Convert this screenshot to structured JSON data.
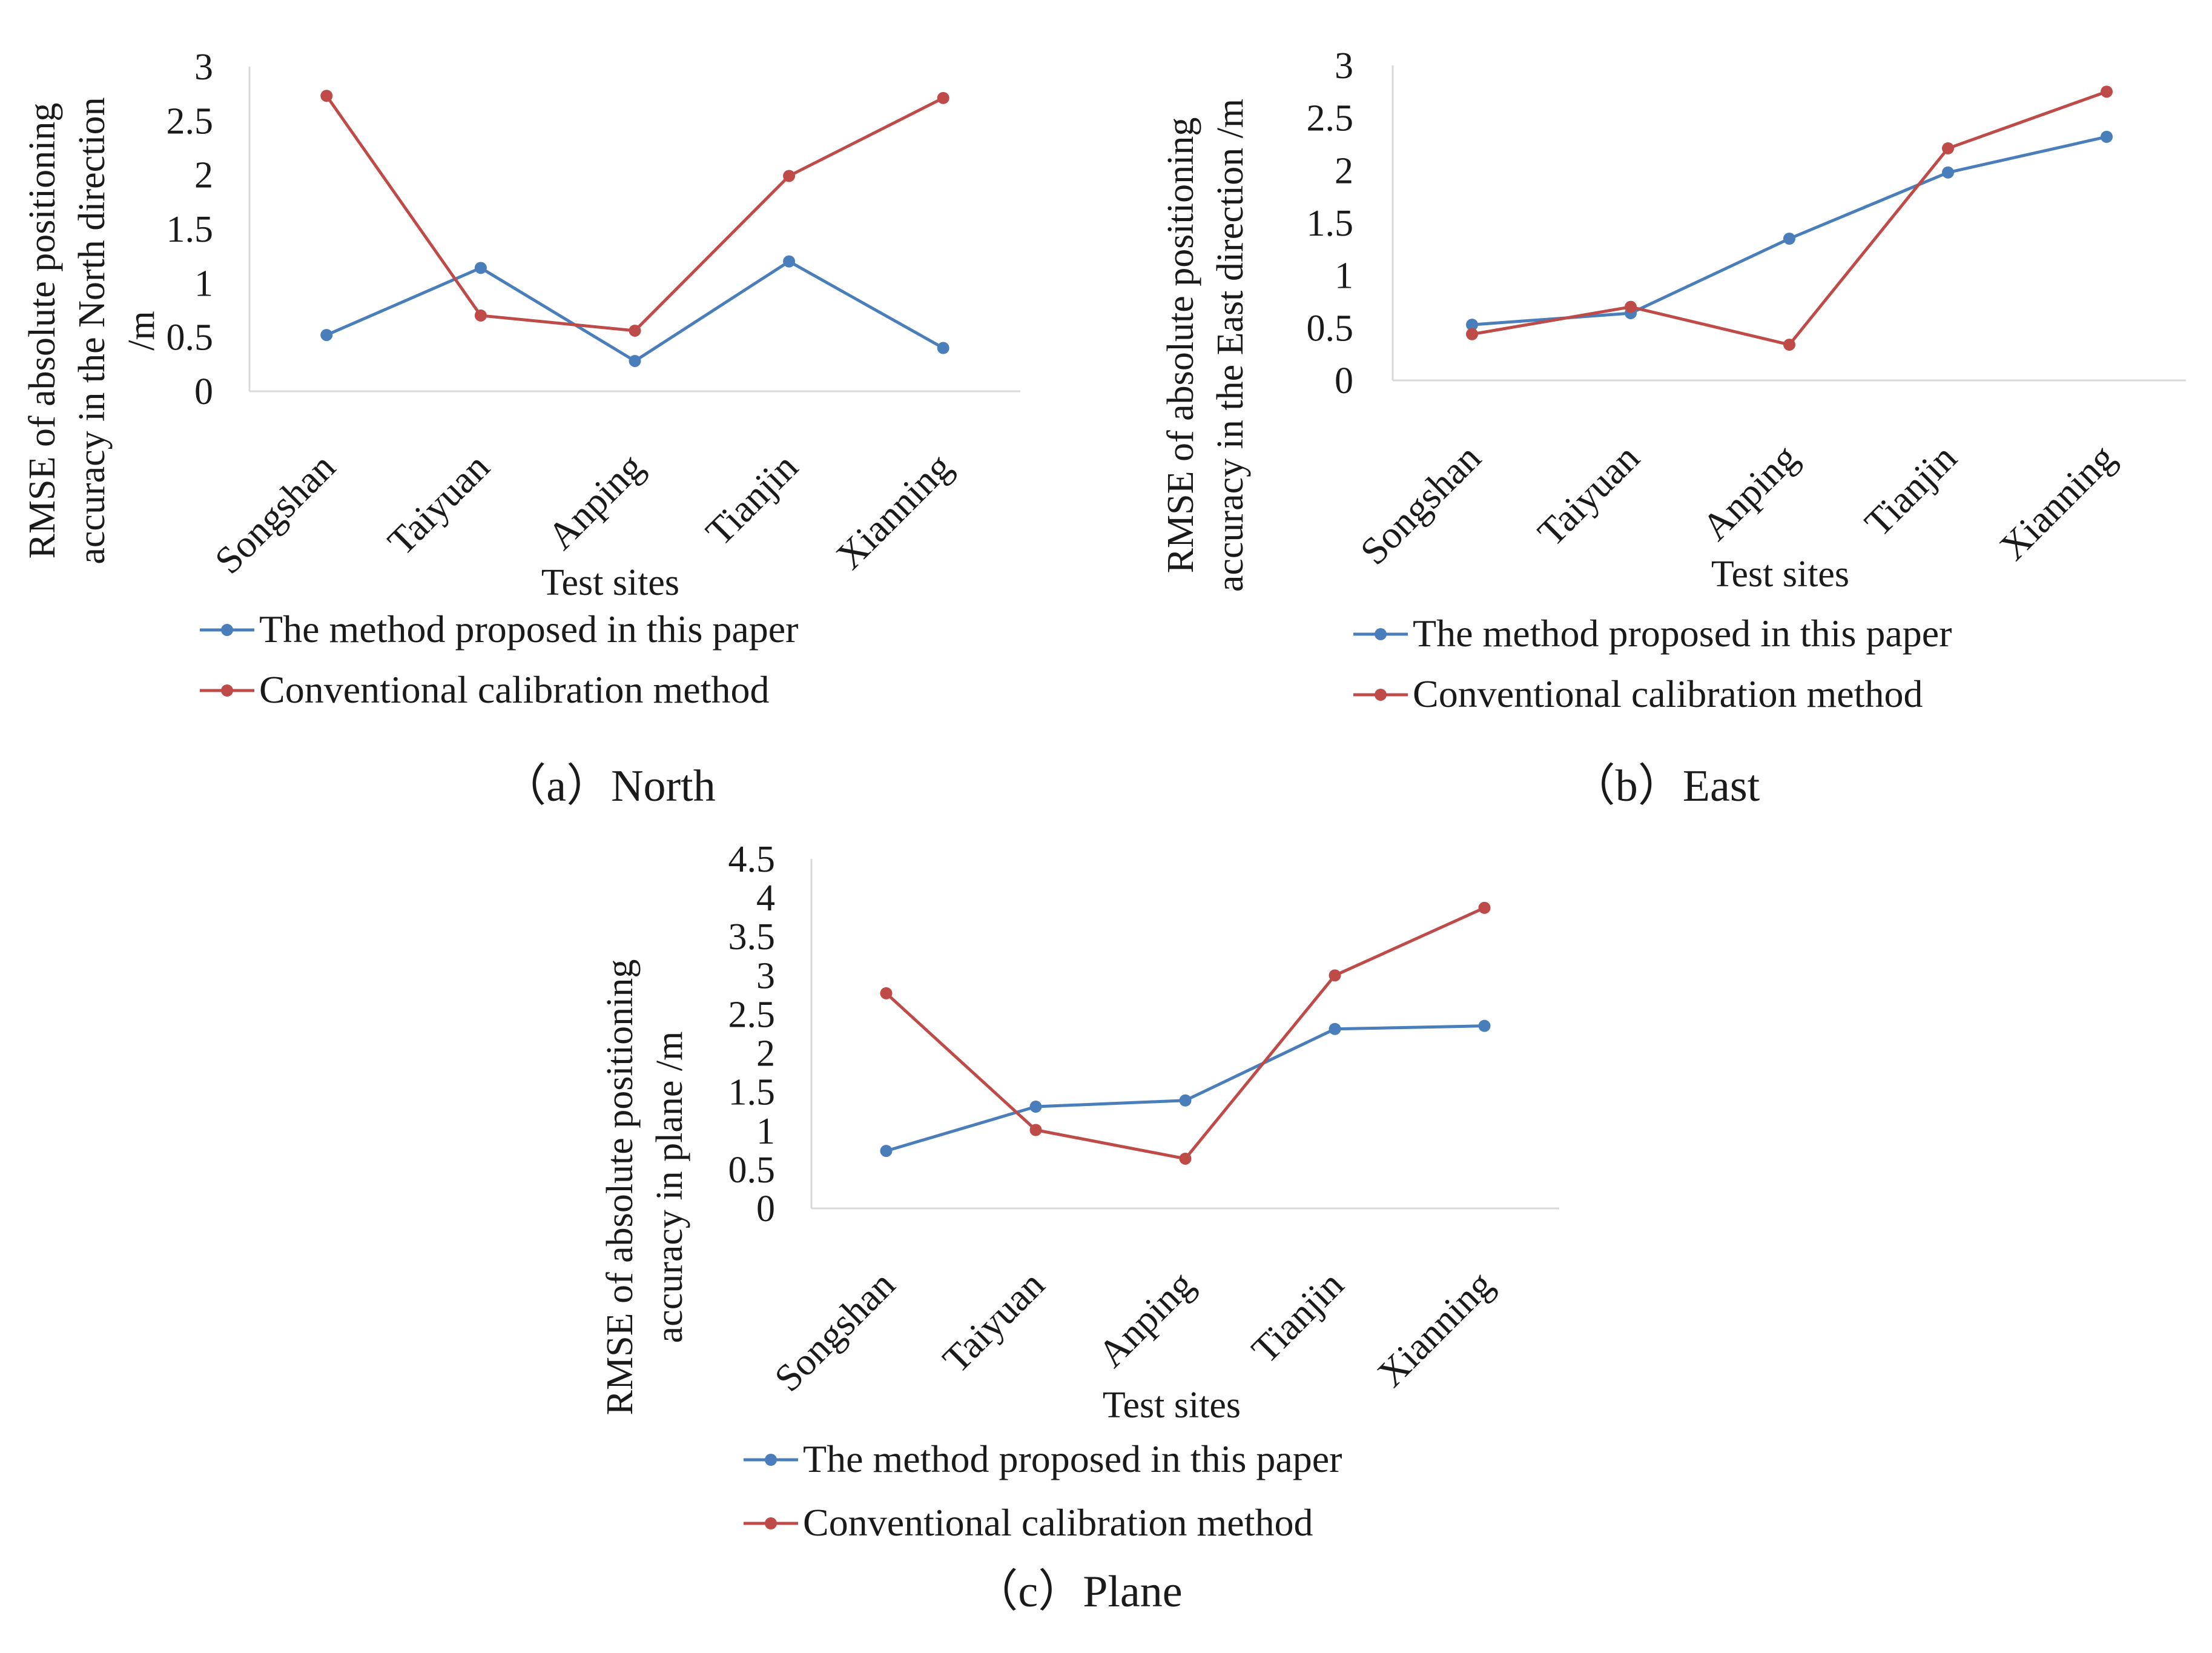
{
  "colors": {
    "proposed": "#4a7ebb",
    "conventional": "#be4b48",
    "axis": "#d9d9d9"
  },
  "chart_data": [
    {
      "type": "line",
      "panel": "a",
      "caption": "（a）North",
      "categories": [
        "Songshan",
        "Taiyuan",
        "Anping",
        "Tianjin",
        "Xianning"
      ],
      "series": [
        {
          "name": "The method proposed in this paper",
          "values": [
            0.52,
            1.14,
            0.28,
            1.2,
            0.4
          ]
        },
        {
          "name": "Conventional calibration method",
          "values": [
            2.73,
            0.7,
            0.56,
            1.99,
            2.71
          ]
        }
      ],
      "xlabel": "Test sites",
      "ylabel_lines": [
        "RMSE of absolute positioning",
        "accuracy in the North direction",
        "/m"
      ],
      "ylim": [
        0,
        3
      ],
      "yticks": [
        "0",
        "0.5",
        "1",
        "1.5",
        "2",
        "2.5",
        "3"
      ],
      "grid": false
    },
    {
      "type": "line",
      "panel": "b",
      "caption": "（b）East",
      "categories": [
        "Songshan",
        "Taiyuan",
        "Anping",
        "Tianjin",
        "Xianning"
      ],
      "series": [
        {
          "name": "The method proposed in this paper",
          "values": [
            0.53,
            0.64,
            1.35,
            1.98,
            2.32
          ]
        },
        {
          "name": "Conventional calibration method",
          "values": [
            0.44,
            0.7,
            0.34,
            2.21,
            2.75
          ]
        }
      ],
      "xlabel": "Test sites",
      "ylabel_lines": [
        "RMSE of absolute positioning",
        "accuracy in the East direction /m"
      ],
      "ylim": [
        0,
        3
      ],
      "yticks": [
        "0",
        "0.5",
        "1",
        "1.5",
        "2",
        "2.5",
        "3"
      ],
      "grid": false
    },
    {
      "type": "line",
      "panel": "c",
      "caption": "（c）Plane",
      "categories": [
        "Songshan",
        "Taiyuan",
        "Anping",
        "Tianjin",
        "Xianning"
      ],
      "series": [
        {
          "name": "The method proposed in this paper",
          "values": [
            0.74,
            1.31,
            1.39,
            2.31,
            2.35
          ]
        },
        {
          "name": "Conventional calibration method",
          "values": [
            2.77,
            1.01,
            0.64,
            3.0,
            3.87
          ]
        }
      ],
      "xlabel": "Test sites",
      "ylabel_lines": [
        "RMSE of absolute positioning",
        "accuracy in plane /m"
      ],
      "ylim": [
        0,
        4.5
      ],
      "yticks": [
        "0",
        "0.5",
        "1",
        "1.5",
        "2",
        "2.5",
        "3",
        "3.5",
        "4",
        "4.5"
      ],
      "grid": false
    }
  ]
}
